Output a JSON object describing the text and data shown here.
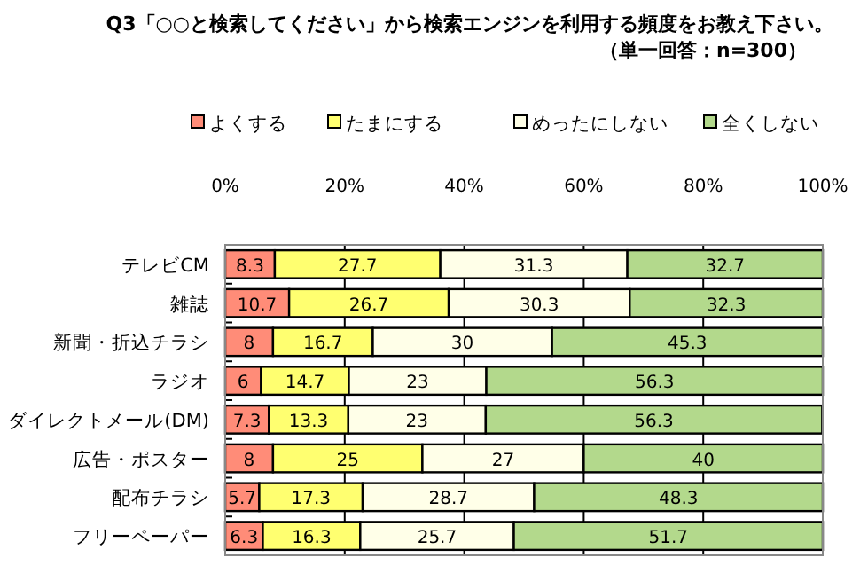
{
  "chart_data": {
    "type": "bar",
    "orientation": "horizontal",
    "stacked": true,
    "title": "Q3「○○と検索してください」から検索エンジンを利用する頻度をお教え下さい。",
    "subtitle": "（単一回答：n=300）",
    "categories": [
      "テレビCM",
      "雑誌",
      "新聞・折込チラシ",
      "ラジオ",
      "ダイレクトメール(DM)",
      "広告・ポスター",
      "配布チラシ",
      "フリーペーパー"
    ],
    "series": [
      {
        "name": "よくする",
        "color": "#ff8c78",
        "values": [
          8.3,
          10.7,
          8,
          6,
          7.3,
          8,
          5.7,
          6.3
        ]
      },
      {
        "name": "たまにする",
        "color": "#ffff70",
        "values": [
          27.7,
          26.7,
          16.7,
          14.7,
          13.3,
          25,
          17.3,
          16.3
        ]
      },
      {
        "name": "めったにしない",
        "color": "#ffffe8",
        "values": [
          31.3,
          30.3,
          30,
          23,
          23,
          27,
          28.7,
          25.7
        ]
      },
      {
        "name": "全くしない",
        "color": "#b3d98c",
        "values": [
          32.7,
          32.3,
          45.3,
          56.3,
          56.3,
          40,
          48.3,
          51.7
        ]
      }
    ],
    "xlim": [
      0,
      100
    ],
    "xticks": [
      {
        "value": 0,
        "label": "0%"
      },
      {
        "value": 20,
        "label": "20%"
      },
      {
        "value": 40,
        "label": "40%"
      },
      {
        "value": 60,
        "label": "60%"
      },
      {
        "value": 80,
        "label": "80%"
      },
      {
        "value": 100,
        "label": "100%"
      }
    ],
    "grid": "x",
    "legend": "top",
    "data_labels": true
  }
}
